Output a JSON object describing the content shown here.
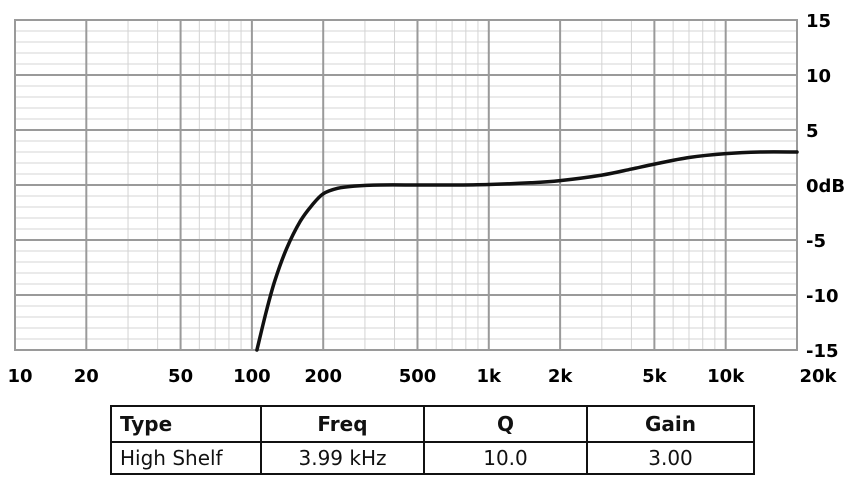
{
  "chart_data": {
    "type": "line",
    "x_scale": "log",
    "xlim": [
      10,
      20000
    ],
    "ylim": [
      -15,
      15
    ],
    "grid": true,
    "x_ticks": [
      {
        "value": 10,
        "label": "10"
      },
      {
        "value": 20,
        "label": "20"
      },
      {
        "value": 50,
        "label": "50"
      },
      {
        "value": 100,
        "label": "100"
      },
      {
        "value": 200,
        "label": "200"
      },
      {
        "value": 500,
        "label": "500"
      },
      {
        "value": 1000,
        "label": "1k"
      },
      {
        "value": 2000,
        "label": "2k"
      },
      {
        "value": 5000,
        "label": "5k"
      },
      {
        "value": 10000,
        "label": "10k"
      },
      {
        "value": 20000,
        "label": "20k"
      }
    ],
    "y_ticks": [
      {
        "value": 15,
        "label": "15"
      },
      {
        "value": 10,
        "label": "10"
      },
      {
        "value": 5,
        "label": "5"
      },
      {
        "value": 0,
        "label": "0dB"
      },
      {
        "value": -5,
        "label": "-5"
      },
      {
        "value": -10,
        "label": "-10"
      },
      {
        "value": -15,
        "label": "-15"
      }
    ],
    "series": [
      {
        "color": "#111111",
        "x": [
          105,
          115,
          125,
          140,
          160,
          180,
          200,
          230,
          270,
          350,
          500,
          700,
          1000,
          1500,
          2000,
          3000,
          4000,
          5000,
          7000,
          10000,
          14000,
          20000
        ],
        "y": [
          -15,
          -11.5,
          -8.7,
          -5.8,
          -3.3,
          -1.8,
          -0.8,
          -0.3,
          -0.1,
          0.0,
          0.0,
          0.0,
          0.05,
          0.2,
          0.4,
          0.9,
          1.45,
          1.9,
          2.5,
          2.85,
          3.0,
          3.0
        ]
      }
    ]
  },
  "table": {
    "headers": [
      "Type",
      "Freq",
      "Q",
      "Gain"
    ],
    "rows": [
      [
        "High Shelf",
        "3.99 kHz",
        "10.0",
        "3.00"
      ]
    ]
  }
}
